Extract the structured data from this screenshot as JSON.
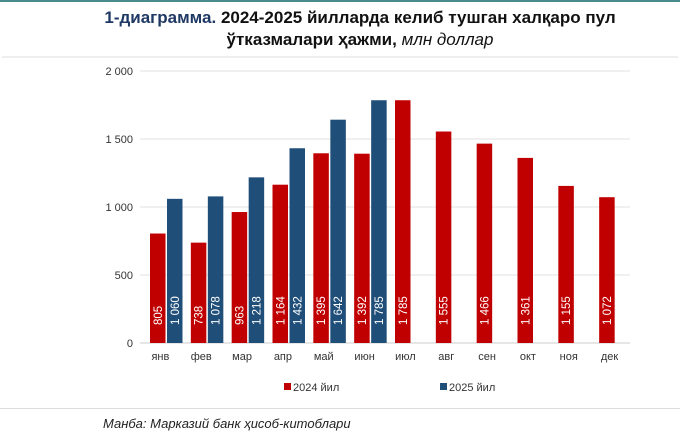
{
  "title": {
    "number": "1-диаграмма.",
    "text": "2024-2025 йилларда келиб тушган халқаро пул ўтказмалари ҳажми,",
    "unit": "млн доллар"
  },
  "source": "Манба: Марказий банк ҳисоб-китоблари",
  "chart_data": {
    "type": "bar",
    "categories": [
      "янв",
      "фев",
      "мар",
      "апр",
      "май",
      "июн",
      "июл",
      "авг",
      "сен",
      "окт",
      "ноя",
      "дек"
    ],
    "series": [
      {
        "name": "2024 йил",
        "color": "#c00000",
        "values": [
          805,
          738,
          963,
          1164,
          1395,
          1392,
          1785,
          1555,
          1466,
          1361,
          1155,
          1072
        ],
        "labels": [
          "805",
          "738",
          "963",
          "1 164",
          "1 395",
          "1 392",
          "1 785",
          "1 555",
          "1 466",
          "1 361",
          "1 155",
          "1 072"
        ]
      },
      {
        "name": "2025 йил",
        "color": "#1f4e79",
        "values": [
          1060,
          1078,
          1218,
          1432,
          1642,
          1785,
          null,
          null,
          null,
          null,
          null,
          null
        ],
        "labels": [
          "1 060",
          "1 078",
          "1 218",
          "1 432",
          "1 642",
          "1 785"
        ]
      }
    ],
    "ylim": [
      0,
      2000
    ],
    "yticks": [
      0,
      500,
      1000,
      1500,
      2000
    ],
    "ytick_labels": [
      "0",
      "500",
      "1 000",
      "1 500",
      "2 000"
    ],
    "grid": true,
    "legend": "bottom"
  }
}
